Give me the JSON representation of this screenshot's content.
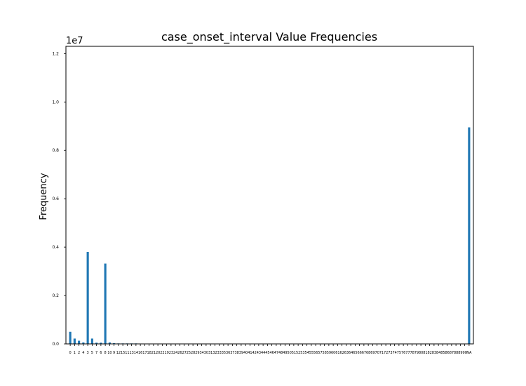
{
  "chart_data": {
    "type": "bar",
    "title": "case_onset_interval Value Frequencies",
    "xlabel": "",
    "ylabel": "Frequency",
    "y_offset_label": "1e7",
    "ylim": [
      0,
      12.3
    ],
    "y_ticks": [
      "0.0",
      "0.2",
      "0.4",
      "0.6",
      "0.8",
      "1.0",
      "1.2"
    ],
    "y_tick_values": [
      0,
      2,
      4,
      6,
      8,
      10,
      12
    ],
    "color": "#1f77b4",
    "categories": [
      "0",
      "1",
      "2",
      "4",
      "3",
      "5",
      "7",
      "6",
      "8",
      "10",
      "9",
      "12",
      "15",
      "11",
      "13",
      "14",
      "16",
      "17",
      "18",
      "21",
      "20",
      "22",
      "19",
      "23",
      "24",
      "26",
      "27",
      "25",
      "28",
      "29",
      "34",
      "30",
      "31",
      "32",
      "33",
      "35",
      "36",
      "37",
      "38",
      "39",
      "40",
      "41",
      "42",
      "43",
      "44",
      "45",
      "46",
      "47",
      "48",
      "49",
      "50",
      "51",
      "52",
      "53",
      "54",
      "55",
      "56",
      "57",
      "58",
      "59",
      "60",
      "61",
      "62",
      "63",
      "64",
      "65",
      "66",
      "67",
      "68",
      "69",
      "70",
      "71",
      "72",
      "73",
      "74",
      "75",
      "76",
      "77",
      "78",
      "79",
      "80",
      "81",
      "82",
      "83",
      "84",
      "85",
      "86",
      "87",
      "88",
      "89",
      "90",
      "NA"
    ],
    "values": [
      0.5,
      0.22,
      0.13,
      0.06,
      3.8,
      0.22,
      0.05,
      0.05,
      3.32,
      0.06,
      0.03,
      0.02,
      0.02,
      0.02,
      0.02,
      0.02,
      0.01,
      0.01,
      0.01,
      0.01,
      0.01,
      0.01,
      0.01,
      0.01,
      0.01,
      0.01,
      0.01,
      0.01,
      0.01,
      0.01,
      0.01,
      0.01,
      0.01,
      0.01,
      0.01,
      0.01,
      0.01,
      0.01,
      0.01,
      0.01,
      0.01,
      0.01,
      0.01,
      0.01,
      0.01,
      0.01,
      0.01,
      0.01,
      0.01,
      0.01,
      0.01,
      0.01,
      0.01,
      0.01,
      0.01,
      0.01,
      0.01,
      0.01,
      0.01,
      0.01,
      0.01,
      0.01,
      0.01,
      0.01,
      0.01,
      0.01,
      0.01,
      0.01,
      0.01,
      0.01,
      0.01,
      0.01,
      0.01,
      0.01,
      0.01,
      0.01,
      0.01,
      0.01,
      0.01,
      0.01,
      0.01,
      0.01,
      0.01,
      0.01,
      0.01,
      0.01,
      0.01,
      0.01,
      0.01,
      0.01,
      0.01,
      8.95
    ]
  }
}
